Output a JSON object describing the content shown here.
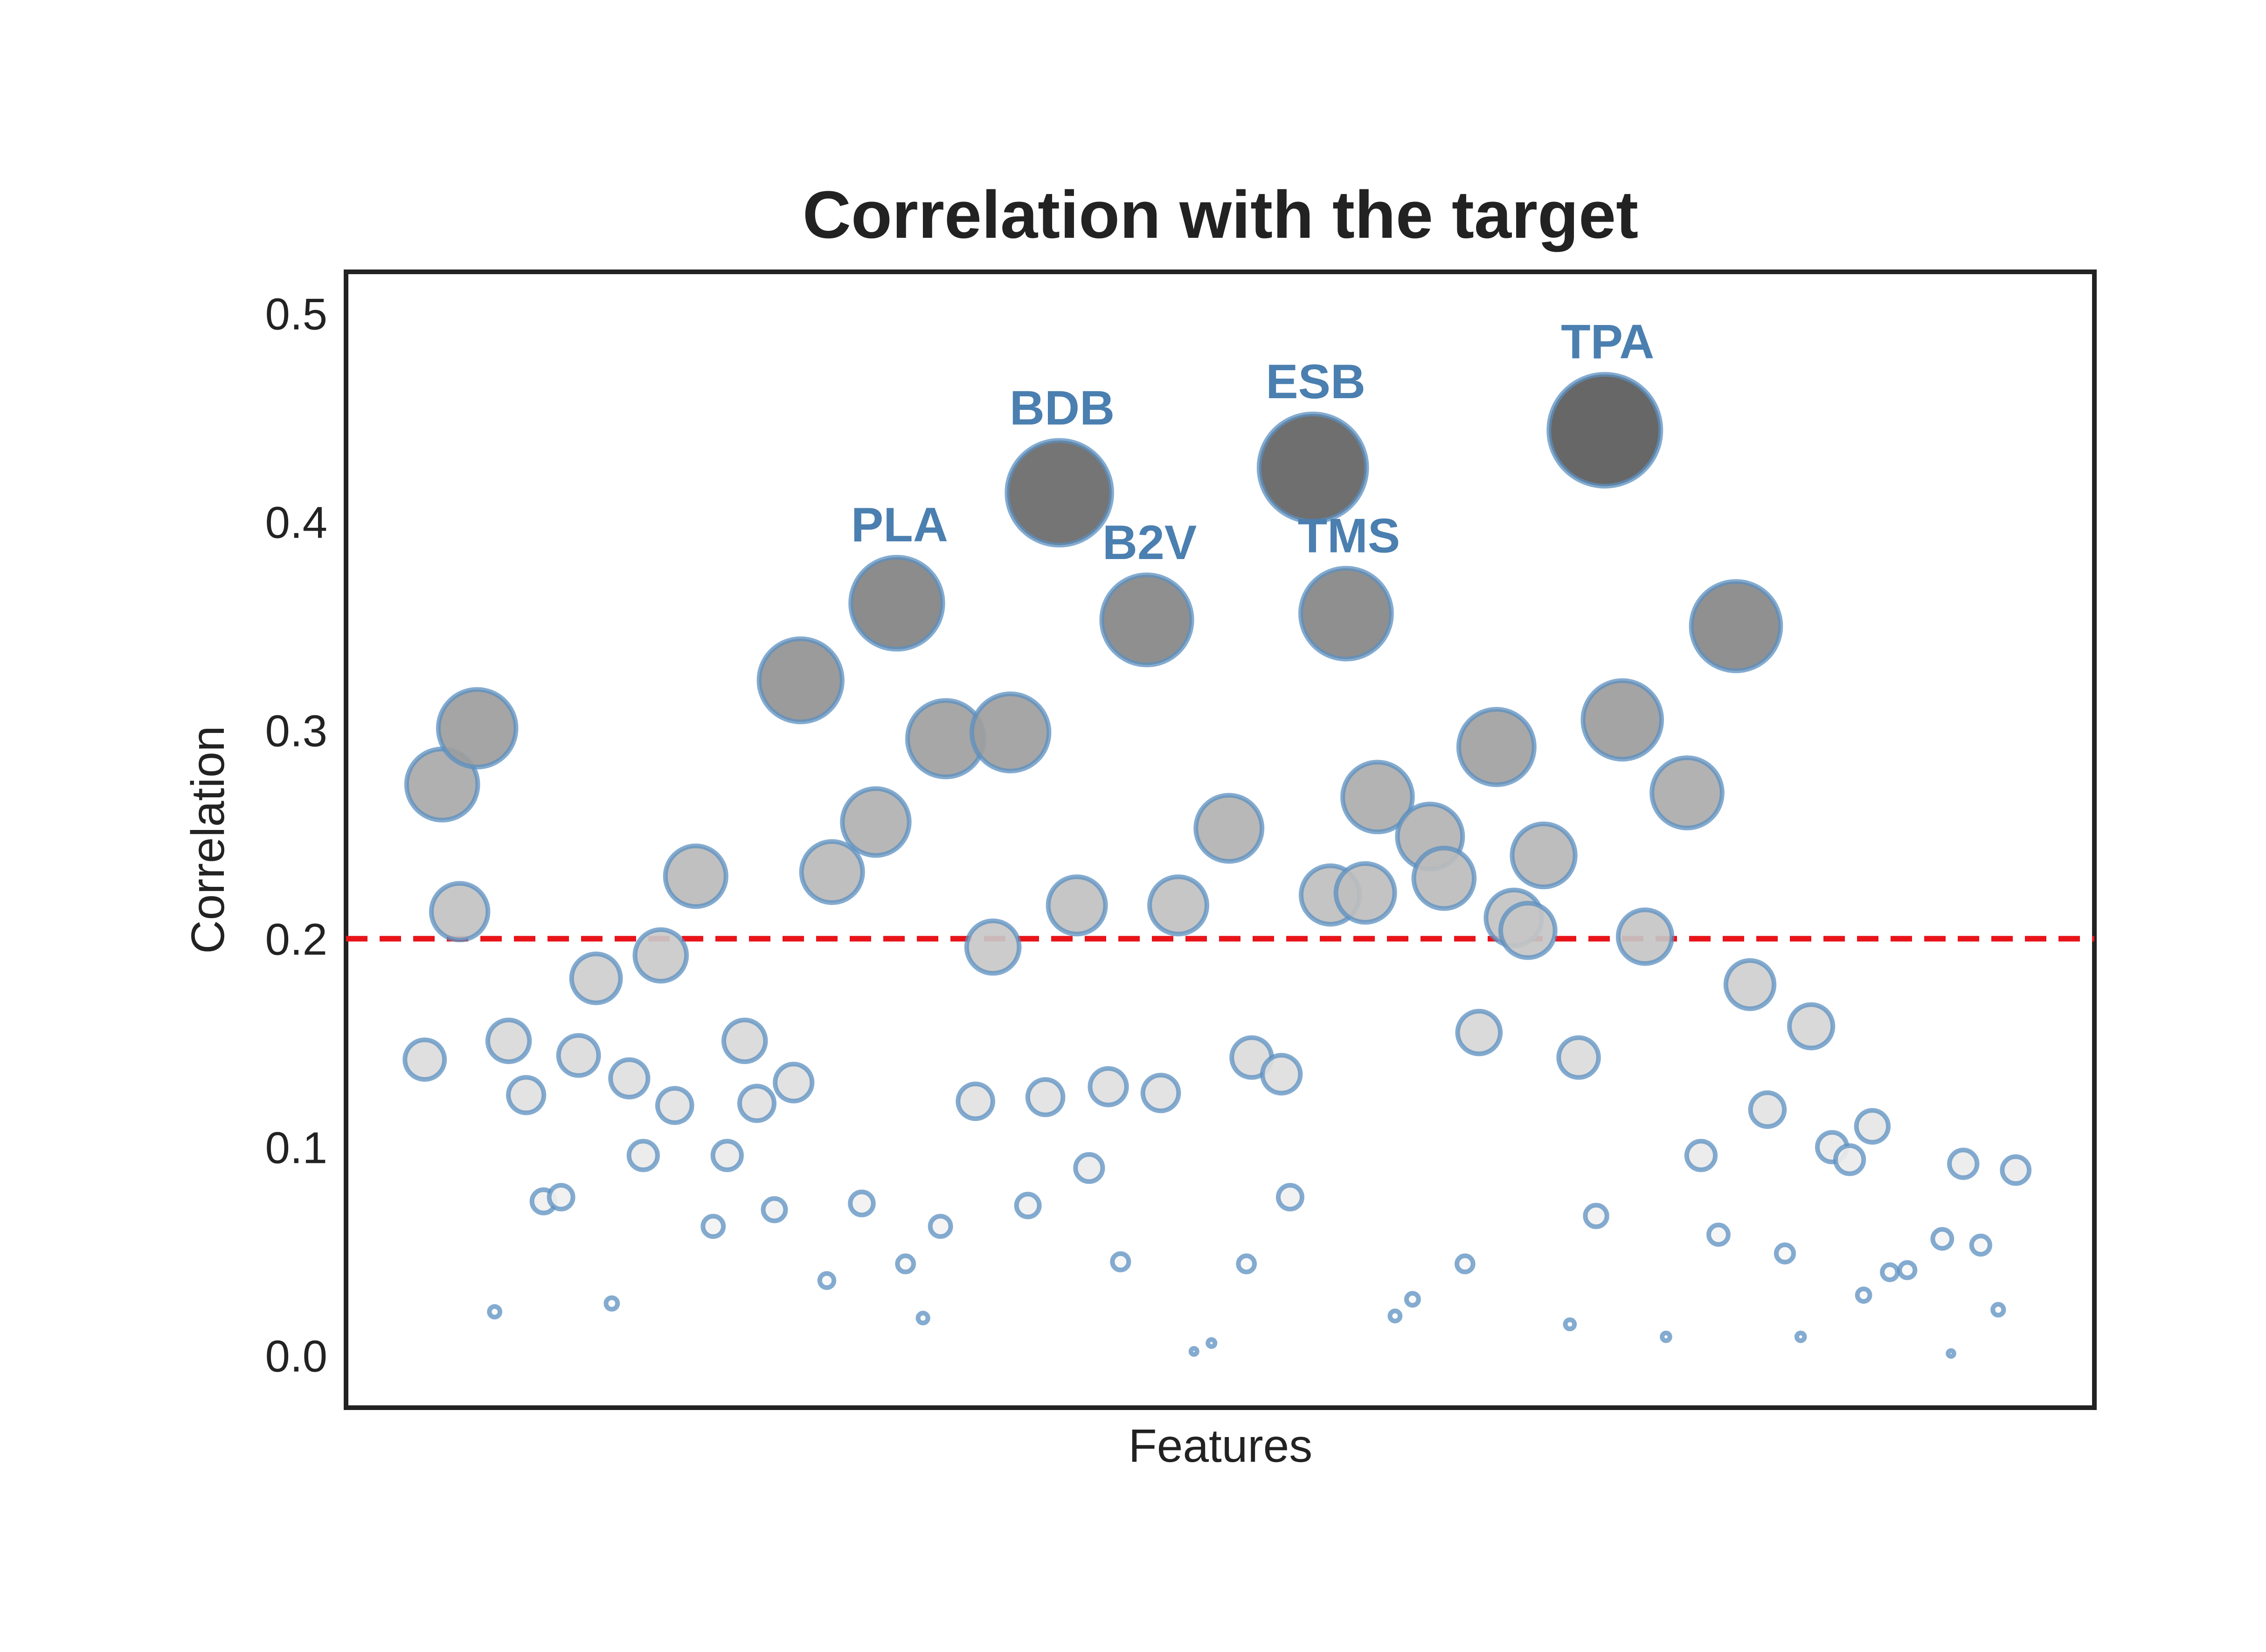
{
  "chart_data": {
    "type": "scatter",
    "title": "Correlation with the target",
    "xlabel": "Features",
    "ylabel": "Correlation",
    "ylim": [
      -0.025,
      0.52
    ],
    "xlim": [
      0,
      100
    ],
    "yticks": [
      0.0,
      0.1,
      0.2,
      0.3,
      0.4,
      0.5
    ],
    "ytick_labels": [
      "0.0",
      "0.1",
      "0.2",
      "0.3",
      "0.4",
      "0.5"
    ],
    "xticks_visible": false,
    "grid": false,
    "threshold": 0.2,
    "colors": {
      "threshold_line": "#e8141a",
      "marker_edge": "#5b8fc0",
      "marker_fill_low": "#ffffff",
      "marker_fill_high": "#5a5a5a",
      "annotation": "#4a7fb0",
      "frame": "#222222"
    },
    "points": [
      {
        "x": 4.5,
        "y": 0.142
      },
      {
        "x": 5.5,
        "y": 0.274
      },
      {
        "x": 6.5,
        "y": 0.213
      },
      {
        "x": 7.5,
        "y": 0.301
      },
      {
        "x": 8.5,
        "y": 0.021
      },
      {
        "x": 9.3,
        "y": 0.151
      },
      {
        "x": 10.3,
        "y": 0.125
      },
      {
        "x": 11.3,
        "y": 0.074
      },
      {
        "x": 12.3,
        "y": 0.076
      },
      {
        "x": 13.3,
        "y": 0.144
      },
      {
        "x": 14.3,
        "y": 0.181
      },
      {
        "x": 15.2,
        "y": 0.025
      },
      {
        "x": 16.2,
        "y": 0.133
      },
      {
        "x": 17.0,
        "y": 0.096
      },
      {
        "x": 18.0,
        "y": 0.192
      },
      {
        "x": 18.8,
        "y": 0.12
      },
      {
        "x": 20.0,
        "y": 0.23
      },
      {
        "x": 21.0,
        "y": 0.062
      },
      {
        "x": 21.8,
        "y": 0.096
      },
      {
        "x": 22.8,
        "y": 0.151
      },
      {
        "x": 23.5,
        "y": 0.121
      },
      {
        "x": 24.5,
        "y": 0.07
      },
      {
        "x": 25.6,
        "y": 0.131
      },
      {
        "x": 26.0,
        "y": 0.324
      },
      {
        "x": 27.5,
        "y": 0.036
      },
      {
        "x": 27.8,
        "y": 0.232
      },
      {
        "x": 29.5,
        "y": 0.073
      },
      {
        "x": 30.3,
        "y": 0.256
      },
      {
        "x": 32.0,
        "y": 0.044
      },
      {
        "x": 31.5,
        "y": 0.361,
        "label": "PLA"
      },
      {
        "x": 33.0,
        "y": 0.018
      },
      {
        "x": 34.0,
        "y": 0.062
      },
      {
        "x": 34.3,
        "y": 0.296
      },
      {
        "x": 36.0,
        "y": 0.122
      },
      {
        "x": 37.0,
        "y": 0.196
      },
      {
        "x": 38.0,
        "y": 0.299
      },
      {
        "x": 39.0,
        "y": 0.072
      },
      {
        "x": 40.0,
        "y": 0.124
      },
      {
        "x": 40.8,
        "y": 0.414,
        "label": "BDB"
      },
      {
        "x": 42.5,
        "y": 0.09
      },
      {
        "x": 41.8,
        "y": 0.216
      },
      {
        "x": 43.6,
        "y": 0.129
      },
      {
        "x": 44.3,
        "y": 0.045
      },
      {
        "x": 45.8,
        "y": 0.353,
        "label": "B2V"
      },
      {
        "x": 46.6,
        "y": 0.126
      },
      {
        "x": 47.6,
        "y": 0.216
      },
      {
        "x": 48.5,
        "y": 0.002
      },
      {
        "x": 49.5,
        "y": 0.006
      },
      {
        "x": 50.5,
        "y": 0.253
      },
      {
        "x": 51.5,
        "y": 0.044
      },
      {
        "x": 51.8,
        "y": 0.143
      },
      {
        "x": 53.5,
        "y": 0.135
      },
      {
        "x": 54.0,
        "y": 0.076
      },
      {
        "x": 55.3,
        "y": 0.426,
        "label": "ESB"
      },
      {
        "x": 56.3,
        "y": 0.221
      },
      {
        "x": 57.2,
        "y": 0.356,
        "label": "TMS"
      },
      {
        "x": 58.3,
        "y": 0.222
      },
      {
        "x": 59.0,
        "y": 0.268
      },
      {
        "x": 60.0,
        "y": 0.019
      },
      {
        "x": 61.0,
        "y": 0.027
      },
      {
        "x": 62.0,
        "y": 0.249
      },
      {
        "x": 62.8,
        "y": 0.229
      },
      {
        "x": 64.0,
        "y": 0.044
      },
      {
        "x": 64.8,
        "y": 0.155
      },
      {
        "x": 65.8,
        "y": 0.292
      },
      {
        "x": 66.8,
        "y": 0.21
      },
      {
        "x": 67.6,
        "y": 0.204
      },
      {
        "x": 68.5,
        "y": 0.24
      },
      {
        "x": 70.0,
        "y": 0.015
      },
      {
        "x": 70.5,
        "y": 0.143
      },
      {
        "x": 71.5,
        "y": 0.067
      },
      {
        "x": 72.0,
        "y": 0.444,
        "label": "TPA"
      },
      {
        "x": 73.0,
        "y": 0.305
      },
      {
        "x": 74.3,
        "y": 0.201
      },
      {
        "x": 75.5,
        "y": 0.009
      },
      {
        "x": 76.7,
        "y": 0.27
      },
      {
        "x": 77.5,
        "y": 0.096
      },
      {
        "x": 78.5,
        "y": 0.058
      },
      {
        "x": 79.5,
        "y": 0.35
      },
      {
        "x": 80.3,
        "y": 0.178
      },
      {
        "x": 81.3,
        "y": 0.118
      },
      {
        "x": 82.3,
        "y": 0.049
      },
      {
        "x": 83.2,
        "y": 0.009
      },
      {
        "x": 83.8,
        "y": 0.158
      },
      {
        "x": 85.0,
        "y": 0.1
      },
      {
        "x": 86.0,
        "y": 0.094
      },
      {
        "x": 86.8,
        "y": 0.029
      },
      {
        "x": 87.3,
        "y": 0.11
      },
      {
        "x": 88.3,
        "y": 0.04
      },
      {
        "x": 89.3,
        "y": 0.041
      },
      {
        "x": 91.3,
        "y": 0.056
      },
      {
        "x": 91.8,
        "y": 0.001
      },
      {
        "x": 92.5,
        "y": 0.092
      },
      {
        "x": 93.5,
        "y": 0.053
      },
      {
        "x": 94.5,
        "y": 0.022
      },
      {
        "x": 95.5,
        "y": 0.089
      }
    ]
  }
}
